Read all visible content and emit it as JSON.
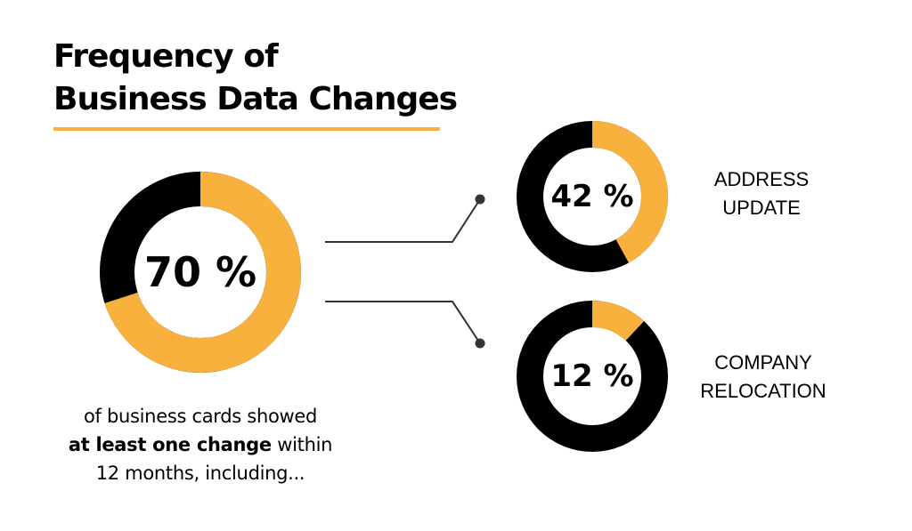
{
  "title": {
    "line1": "Frequency of",
    "line2": "Business Data Changes"
  },
  "caption": {
    "before": "of business cards showed ",
    "bold": "at least one change",
    "after": " within",
    "line3": "12 months, including..."
  },
  "colors": {
    "accent": "#F9B13E",
    "dark": "#000000",
    "connector": "#333333",
    "background": "#FFFFFF"
  },
  "chart_data": [
    {
      "type": "pie",
      "style": "donut",
      "value": 70,
      "label": "70 %",
      "slices": [
        {
          "name": "",
          "value": 70,
          "color": "#F9B13E"
        },
        {
          "name": "",
          "value": 30,
          "color": "#000000"
        }
      ]
    },
    {
      "type": "pie",
      "style": "donut",
      "value": 42,
      "label": "42 %",
      "category": [
        "ADDRESS",
        "UPDATE"
      ],
      "slices": [
        {
          "name": "",
          "value": 42,
          "color": "#F9B13E"
        },
        {
          "name": "",
          "value": 58,
          "color": "#000000"
        }
      ]
    },
    {
      "type": "pie",
      "style": "donut",
      "value": 12,
      "label": "12 %",
      "category": [
        "COMPANY",
        "RELOCATION"
      ],
      "slices": [
        {
          "name": "",
          "value": 12,
          "color": "#F9B13E"
        },
        {
          "name": "",
          "value": 88,
          "color": "#000000"
        }
      ]
    }
  ]
}
